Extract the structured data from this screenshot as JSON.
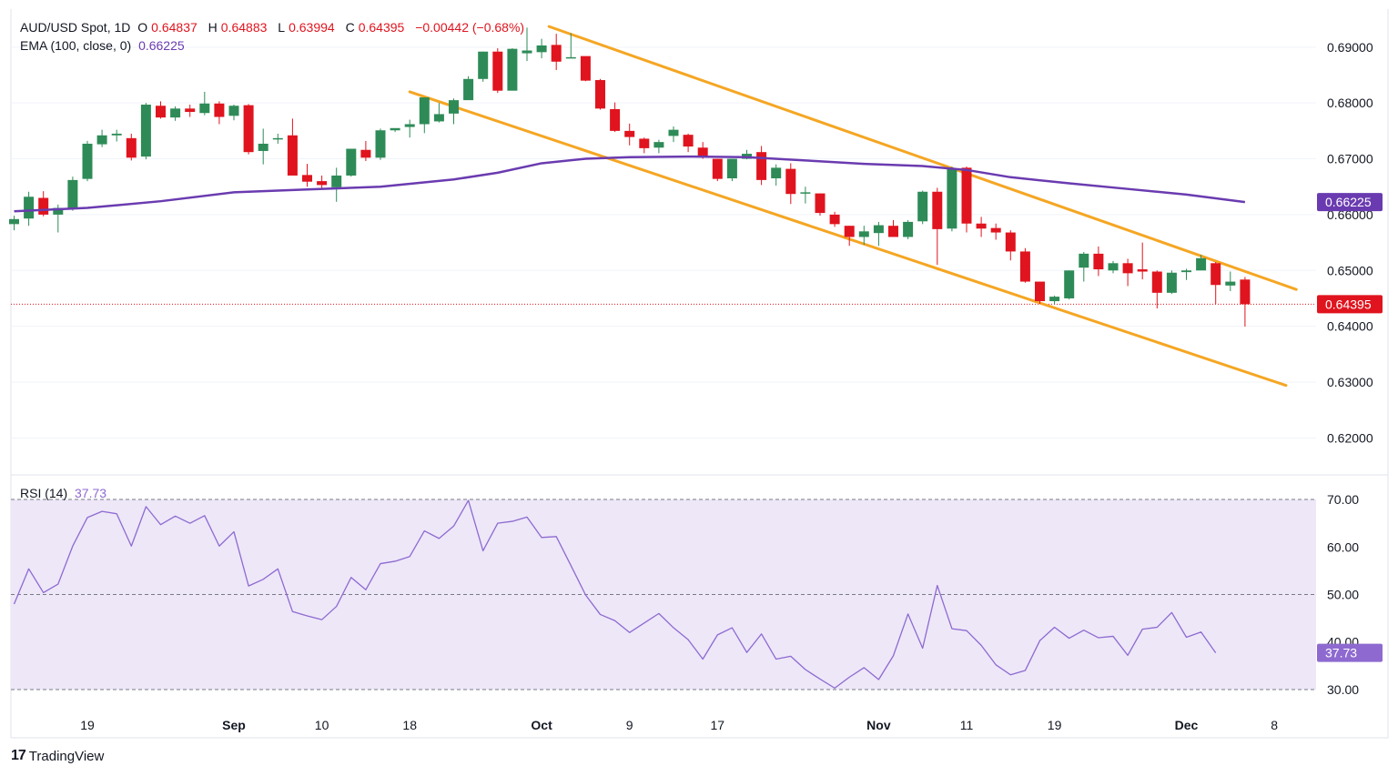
{
  "header": {
    "symbol": "AUD/USD Spot, 1D",
    "o_label": "O",
    "o_value": "0.64837",
    "h_label": "H",
    "h_value": "0.64883",
    "l_label": "L",
    "l_value": "0.63994",
    "c_label": "C",
    "c_value": "0.64395",
    "change": "−0.00442 (−0.68%)",
    "ema_label": "EMA (100, close, 0)",
    "ema_value": "0.66225",
    "rsi_label": "RSI (14)",
    "rsi_value": "37.73"
  },
  "brand": {
    "logo_text": "17",
    "name": "TradingView"
  },
  "colors": {
    "up": "#2e8b57",
    "down": "#e0141e",
    "ema": "#6a3bb0",
    "channel": "#f5a623",
    "rsi": "#8e6ad0",
    "rsi_band": "#ede7f8"
  },
  "chart_data": [
    {
      "type": "candlestick",
      "title": "AUD/USD Spot, 1D",
      "ylim": [
        0.6155,
        0.696
      ],
      "y_ticks": [
        "0.69000",
        "0.68000",
        "0.67000",
        "0.66000",
        "0.65000",
        "0.64000",
        "0.63000",
        "0.62000"
      ],
      "y_tick_values": [
        0.69,
        0.68,
        0.67,
        0.66,
        0.65,
        0.64,
        0.63,
        0.62
      ],
      "x_ticks": [
        "19",
        "Sep",
        "10",
        "18",
        "Oct",
        "9",
        "17",
        "Nov",
        "11",
        "19",
        "Dec",
        "8"
      ],
      "x_tick_index": [
        5,
        15,
        21,
        27,
        36,
        42,
        48,
        59,
        65,
        71,
        80,
        86
      ],
      "candles": [
        [
          0.6583,
          0.6598,
          0.6572,
          0.6592
        ],
        [
          0.6593,
          0.6641,
          0.658,
          0.6632
        ],
        [
          0.663,
          0.6642,
          0.6597,
          0.66
        ],
        [
          0.66,
          0.6618,
          0.6568,
          0.6612
        ],
        [
          0.6612,
          0.6668,
          0.6607,
          0.6662
        ],
        [
          0.6664,
          0.6732,
          0.666,
          0.6727
        ],
        [
          0.6726,
          0.6752,
          0.6721,
          0.6742
        ],
        [
          0.6742,
          0.6752,
          0.6731,
          0.6745
        ],
        [
          0.6737,
          0.6745,
          0.6697,
          0.6702
        ],
        [
          0.6704,
          0.68,
          0.6699,
          0.6797
        ],
        [
          0.6795,
          0.6803,
          0.6772,
          0.6774
        ],
        [
          0.6774,
          0.6794,
          0.6768,
          0.679
        ],
        [
          0.679,
          0.6797,
          0.6775,
          0.6784
        ],
        [
          0.6782,
          0.682,
          0.6778,
          0.6799
        ],
        [
          0.6799,
          0.6803,
          0.6762,
          0.6775
        ],
        [
          0.6777,
          0.6797,
          0.6769,
          0.6795
        ],
        [
          0.6796,
          0.6798,
          0.6708,
          0.6712
        ],
        [
          0.6714,
          0.6754,
          0.669,
          0.6727
        ],
        [
          0.6736,
          0.6745,
          0.6727,
          0.6737
        ],
        [
          0.6742,
          0.6772,
          0.6674,
          0.667
        ],
        [
          0.6671,
          0.6691,
          0.665,
          0.6659
        ],
        [
          0.666,
          0.667,
          0.6645,
          0.6653
        ],
        [
          0.6649,
          0.6684,
          0.6623,
          0.667
        ],
        [
          0.667,
          0.6718,
          0.6668,
          0.6718
        ],
        [
          0.6716,
          0.6732,
          0.6696,
          0.6702
        ],
        [
          0.6702,
          0.6754,
          0.6698,
          0.6751
        ],
        [
          0.6751,
          0.6753,
          0.6748,
          0.6755
        ],
        [
          0.6757,
          0.677,
          0.6738,
          0.6762
        ],
        [
          0.6762,
          0.681,
          0.6746,
          0.681
        ],
        [
          0.6767,
          0.68,
          0.6765,
          0.678
        ],
        [
          0.6781,
          0.6808,
          0.6762,
          0.6805
        ],
        [
          0.6805,
          0.6848,
          0.6808,
          0.6843
        ],
        [
          0.6843,
          0.6892,
          0.6838,
          0.6892
        ],
        [
          0.6892,
          0.6898,
          0.6818,
          0.6822
        ],
        [
          0.6822,
          0.6898,
          0.6827,
          0.6897
        ],
        [
          0.6889,
          0.6935,
          0.6875,
          0.6894
        ],
        [
          0.6891,
          0.6915,
          0.688,
          0.6903
        ],
        [
          0.6904,
          0.6924,
          0.6859,
          0.6874
        ],
        [
          0.688,
          0.6925,
          0.688,
          0.6882
        ],
        [
          0.6884,
          0.6882,
          0.6839,
          0.684
        ],
        [
          0.6841,
          0.6843,
          0.6788,
          0.679
        ],
        [
          0.6789,
          0.6801,
          0.6748,
          0.675
        ],
        [
          0.675,
          0.6763,
          0.6724,
          0.6739
        ],
        [
          0.6736,
          0.6738,
          0.671,
          0.6719
        ],
        [
          0.672,
          0.6734,
          0.671,
          0.673
        ],
        [
          0.6741,
          0.6758,
          0.673,
          0.6752
        ],
        [
          0.6743,
          0.6745,
          0.6712,
          0.6722
        ],
        [
          0.672,
          0.673,
          0.67,
          0.6705
        ],
        [
          0.67,
          0.67,
          0.666,
          0.6664
        ],
        [
          0.6665,
          0.67,
          0.666,
          0.67
        ],
        [
          0.67,
          0.6716,
          0.6699,
          0.6709
        ],
        [
          0.6712,
          0.6723,
          0.6653,
          0.6662
        ],
        [
          0.6665,
          0.669,
          0.6652,
          0.6684
        ],
        [
          0.6682,
          0.6692,
          0.6619,
          0.6637
        ],
        [
          0.6638,
          0.665,
          0.662,
          0.664
        ],
        [
          0.6638,
          0.6638,
          0.6598,
          0.6603
        ],
        [
          0.66,
          0.6605,
          0.6578,
          0.6583
        ],
        [
          0.658,
          0.658,
          0.6544,
          0.656
        ],
        [
          0.656,
          0.658,
          0.6546,
          0.657
        ],
        [
          0.6567,
          0.6587,
          0.6544,
          0.6581
        ],
        [
          0.658,
          0.659,
          0.656,
          0.656
        ],
        [
          0.656,
          0.659,
          0.6556,
          0.6587
        ],
        [
          0.6588,
          0.6643,
          0.6583,
          0.6641
        ],
        [
          0.6641,
          0.6648,
          0.651,
          0.6574
        ],
        [
          0.6575,
          0.6686,
          0.657,
          0.6683
        ],
        [
          0.6684,
          0.6686,
          0.6568,
          0.6584
        ],
        [
          0.6584,
          0.6596,
          0.656,
          0.6575
        ],
        [
          0.6576,
          0.6584,
          0.6555,
          0.6568
        ],
        [
          0.6568,
          0.6572,
          0.6518,
          0.6534
        ],
        [
          0.6534,
          0.654,
          0.6478,
          0.648
        ],
        [
          0.648,
          0.648,
          0.644,
          0.6445
        ],
        [
          0.6445,
          0.6455,
          0.644,
          0.6453
        ],
        [
          0.645,
          0.65,
          0.6448,
          0.65
        ],
        [
          0.6505,
          0.6533,
          0.648,
          0.653
        ],
        [
          0.653,
          0.6543,
          0.649,
          0.6502
        ],
        [
          0.65,
          0.6517,
          0.6495,
          0.6513
        ],
        [
          0.6513,
          0.6521,
          0.6472,
          0.6495
        ],
        [
          0.6502,
          0.655,
          0.6484,
          0.6498
        ],
        [
          0.6498,
          0.65,
          0.6432,
          0.646
        ],
        [
          0.646,
          0.65,
          0.6458,
          0.6496
        ],
        [
          0.6497,
          0.6503,
          0.6483,
          0.65
        ],
        [
          0.65,
          0.6528,
          0.6502,
          0.6522
        ],
        [
          0.6513,
          0.6515,
          0.644,
          0.6474
        ],
        [
          0.6473,
          0.6498,
          0.6463,
          0.648
        ],
        [
          0.64837,
          0.64883,
          0.63994,
          0.64395
        ]
      ],
      "ema": [
        [
          0,
          0.6606
        ],
        [
          5,
          0.6612
        ],
        [
          10,
          0.6624
        ],
        [
          15,
          0.664
        ],
        [
          20,
          0.6645
        ],
        [
          25,
          0.665
        ],
        [
          30,
          0.6663
        ],
        [
          33,
          0.6675
        ],
        [
          36,
          0.6692
        ],
        [
          39,
          0.67
        ],
        [
          42,
          0.6703
        ],
        [
          46,
          0.6704
        ],
        [
          50,
          0.6703
        ],
        [
          54,
          0.6697
        ],
        [
          58,
          0.6691
        ],
        [
          62,
          0.6687
        ],
        [
          65,
          0.668
        ],
        [
          68,
          0.6667
        ],
        [
          72,
          0.6656
        ],
        [
          76,
          0.6646
        ],
        [
          80,
          0.6636
        ],
        [
          84,
          0.66225
        ]
      ],
      "channel_upper": [
        [
          36.5,
          0.6937
        ],
        [
          87.5,
          0.6466
        ]
      ],
      "channel_lower": [
        [
          27.0,
          0.682
        ],
        [
          86.8,
          0.6294
        ]
      ],
      "last_price": 0.64395,
      "ema_last_label": "0.66225",
      "last_label": "0.64395"
    },
    {
      "type": "line",
      "title": "RSI (14)",
      "ylim": [
        27.5,
        72.5
      ],
      "y_ticks": [
        "70.00",
        "60.00",
        "50.00",
        "40.00",
        "30.00"
      ],
      "y_tick_values": [
        70,
        60,
        50,
        40,
        30
      ],
      "band": [
        30,
        70
      ],
      "values": [
        48.0,
        55.4,
        50.4,
        52.2,
        60.2,
        66.2,
        67.5,
        67.0,
        60.2,
        68.5,
        64.7,
        66.5,
        65.0,
        66.6,
        60.2,
        63.2,
        51.8,
        53.2,
        55.4,
        46.4,
        45.5,
        44.7,
        47.5,
        53.6,
        51.0,
        56.5,
        57.0,
        58.0,
        63.4,
        61.8,
        64.4,
        69.8,
        59.2,
        65.0,
        65.4,
        66.3,
        62.0,
        62.2,
        56.1,
        49.9,
        45.8,
        44.5,
        42.0,
        44.0,
        46.0,
        43.0,
        40.5,
        36.4,
        41.5,
        43.0,
        37.8,
        41.7,
        36.4,
        37.0,
        34.2,
        32.2,
        30.3,
        32.6,
        34.6,
        32.1,
        37.1,
        45.9,
        38.7,
        51.9,
        42.8,
        42.4,
        39.3,
        35.2,
        33.1,
        34.0,
        40.3,
        43.1,
        40.8,
        42.5,
        40.9,
        41.2,
        37.2,
        42.7,
        43.1,
        46.2,
        41.0,
        42.1,
        37.73
      ],
      "last_label": "37.73"
    }
  ]
}
